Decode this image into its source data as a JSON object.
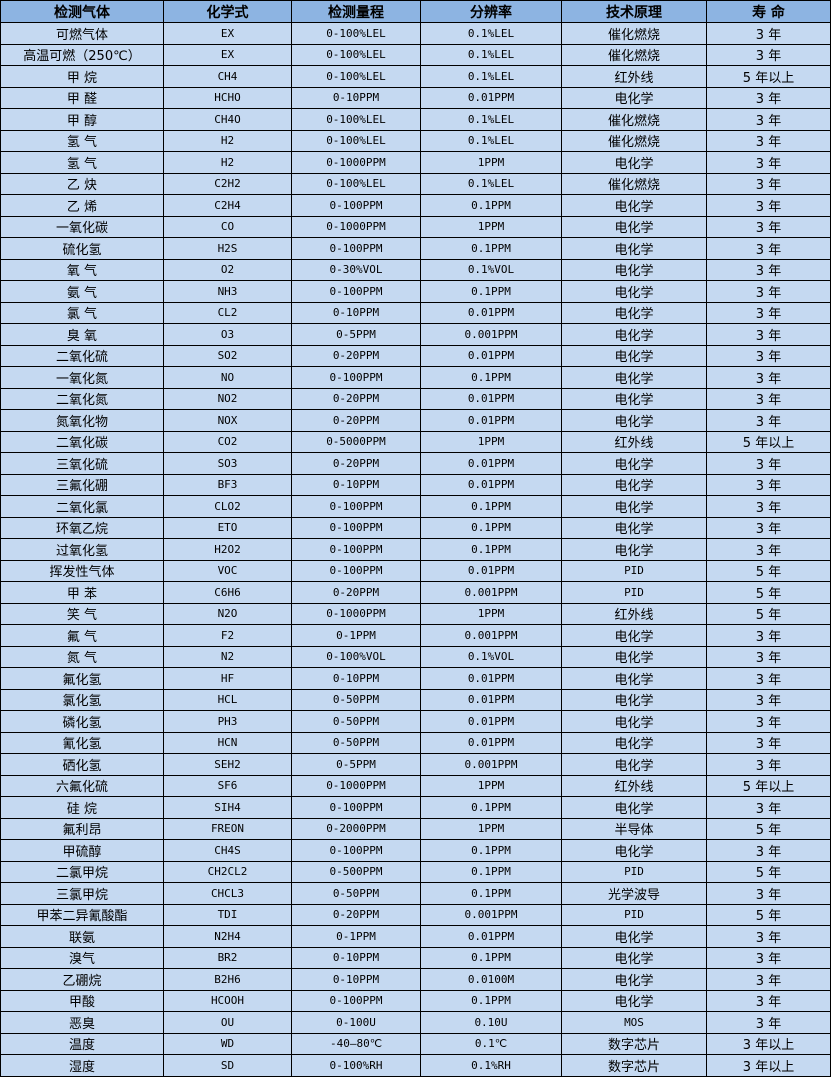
{
  "headers": [
    "检测气体",
    "化学式",
    "检测量程",
    "分辨率",
    "技术原理",
    "寿 命"
  ],
  "colors": {
    "header_bg": "#8db4e2",
    "row_bg": "#c5d9f1",
    "border": "#000000"
  },
  "rows": [
    [
      "可燃气体",
      "EX",
      "0-100%LEL",
      "0.1%LEL",
      "催化燃烧",
      "3 年"
    ],
    [
      "高温可燃（250℃）",
      "EX",
      "0-100%LEL",
      "0.1%LEL",
      "催化燃烧",
      "3 年"
    ],
    [
      "甲 烷",
      "CH4",
      "0-100%LEL",
      "0.1%LEL",
      "红外线",
      "5 年以上"
    ],
    [
      "甲 醛",
      "HCHO",
      "0-10PPM",
      "0.01PPM",
      "电化学",
      "3 年"
    ],
    [
      "甲 醇",
      "CH4O",
      "0-100%LEL",
      "0.1%LEL",
      "催化燃烧",
      "3 年"
    ],
    [
      "氢 气",
      "H2",
      "0-100%LEL",
      "0.1%LEL",
      "催化燃烧",
      "3 年"
    ],
    [
      "氢 气",
      "H2",
      "0-1000PPM",
      "1PPM",
      "电化学",
      "3 年"
    ],
    [
      "乙 炔",
      "C2H2",
      "0-100%LEL",
      "0.1%LEL",
      "催化燃烧",
      "3 年"
    ],
    [
      "乙 烯",
      "C2H4",
      "0-100PPM",
      "0.1PPM",
      "电化学",
      "3 年"
    ],
    [
      "一氧化碳",
      "CO",
      "0-1000PPM",
      "1PPM",
      "电化学",
      "3 年"
    ],
    [
      "硫化氢",
      "H2S",
      "0-100PPM",
      "0.1PPM",
      "电化学",
      "3 年"
    ],
    [
      "氧 气",
      "O2",
      "0-30%VOL",
      "0.1%VOL",
      "电化学",
      "3 年"
    ],
    [
      "氨 气",
      "NH3",
      "0-100PPM",
      "0.1PPM",
      "电化学",
      "3 年"
    ],
    [
      "氯 气",
      "CL2",
      "0-10PPM",
      "0.01PPM",
      "电化学",
      "3 年"
    ],
    [
      "臭 氧",
      "O3",
      "0-5PPM",
      "0.001PPM",
      "电化学",
      "3 年"
    ],
    [
      "二氧化硫",
      "SO2",
      "0-20PPM",
      "0.01PPM",
      "电化学",
      "3 年"
    ],
    [
      "一氧化氮",
      "NO",
      "0-100PPM",
      "0.1PPM",
      "电化学",
      "3 年"
    ],
    [
      "二氧化氮",
      "NO2",
      "0-20PPM",
      "0.01PPM",
      "电化学",
      "3 年"
    ],
    [
      "氮氧化物",
      "NOX",
      "0-20PPM",
      "0.01PPM",
      "电化学",
      "3 年"
    ],
    [
      "二氧化碳",
      "CO2",
      "0-5000PPM",
      "1PPM",
      "红外线",
      "5 年以上"
    ],
    [
      "三氧化硫",
      "SO3",
      "0-20PPM",
      "0.01PPM",
      "电化学",
      "3 年"
    ],
    [
      "三氟化硼",
      "BF3",
      "0-10PPM",
      "0.01PPM",
      "电化学",
      "3 年"
    ],
    [
      "二氧化氯",
      "CLO2",
      "0-100PPM",
      "0.1PPM",
      "电化学",
      "3 年"
    ],
    [
      "环氧乙烷",
      "ETO",
      "0-100PPM",
      "0.1PPM",
      "电化学",
      "3 年"
    ],
    [
      "过氧化氢",
      "H2O2",
      "0-100PPM",
      "0.1PPM",
      "电化学",
      "3 年"
    ],
    [
      "挥发性气体",
      "VOC",
      "0-100PPM",
      "0.01PPM",
      "PID",
      "5 年"
    ],
    [
      "甲 苯",
      "C6H6",
      "0-20PPM",
      "0.001PPM",
      "PID",
      "5 年"
    ],
    [
      "笑 气",
      "N2O",
      "0-1000PPM",
      "1PPM",
      "红外线",
      "5 年"
    ],
    [
      "氟 气",
      "F2",
      "0-1PPM",
      "0.001PPM",
      "电化学",
      "3 年"
    ],
    [
      "氮 气",
      "N2",
      "0-100%VOL",
      "0.1%VOL",
      "电化学",
      "3 年"
    ],
    [
      "氟化氢",
      "HF",
      "0-10PPM",
      "0.01PPM",
      "电化学",
      "3 年"
    ],
    [
      "氯化氢",
      "HCL",
      "0-50PPM",
      "0.01PPM",
      "电化学",
      "3 年"
    ],
    [
      "磷化氢",
      "PH3",
      "0-50PPM",
      "0.01PPM",
      "电化学",
      "3 年"
    ],
    [
      "氰化氢",
      "HCN",
      "0-50PPM",
      "0.01PPM",
      "电化学",
      "3 年"
    ],
    [
      "硒化氢",
      "SEH2",
      "0-5PPM",
      "0.001PPM",
      "电化学",
      "3 年"
    ],
    [
      "六氟化硫",
      "SF6",
      "0-1000PPM",
      "1PPM",
      "红外线",
      "5 年以上"
    ],
    [
      "硅 烷",
      "SIH4",
      "0-100PPM",
      "0.1PPM",
      "电化学",
      "3 年"
    ],
    [
      "氟利昂",
      "FREON",
      "0-2000PPM",
      "1PPM",
      "半导体",
      "5 年"
    ],
    [
      "甲硫醇",
      "CH4S",
      "0-100PPM",
      "0.1PPM",
      "电化学",
      "3 年"
    ],
    [
      "二氯甲烷",
      "CH2CL2",
      "0-500PPM",
      "0.1PPM",
      "PID",
      "5 年"
    ],
    [
      "三氯甲烷",
      "CHCL3",
      "0-50PPM",
      "0.1PPM",
      "光学波导",
      "3 年"
    ],
    [
      "甲苯二异氰酸酯",
      "TDI",
      "0-20PPM",
      "0.001PPM",
      "PID",
      "5 年"
    ],
    [
      "联氨",
      "N2H4",
      "0-1PPM",
      "0.01PPM",
      "电化学",
      "3 年"
    ],
    [
      "溴气",
      "BR2",
      "0-10PPM",
      "0.1PPM",
      "电化学",
      "3 年"
    ],
    [
      "乙硼烷",
      "B2H6",
      "0-10PPM",
      "0.0100M",
      "电化学",
      "3 年"
    ],
    [
      "甲酸",
      "HCOOH",
      "0-100PPM",
      "0.1PPM",
      "电化学",
      "3 年"
    ],
    [
      "恶臭",
      "OU",
      "0-100U",
      "0.10U",
      "MOS",
      "3 年"
    ],
    [
      "温度",
      "WD",
      "-40—80℃",
      "0.1℃",
      "数字芯片",
      "3 年以上"
    ],
    [
      "湿度",
      "SD",
      "0-100%RH",
      "0.1%RH",
      "数字芯片",
      "3 年以上"
    ]
  ]
}
